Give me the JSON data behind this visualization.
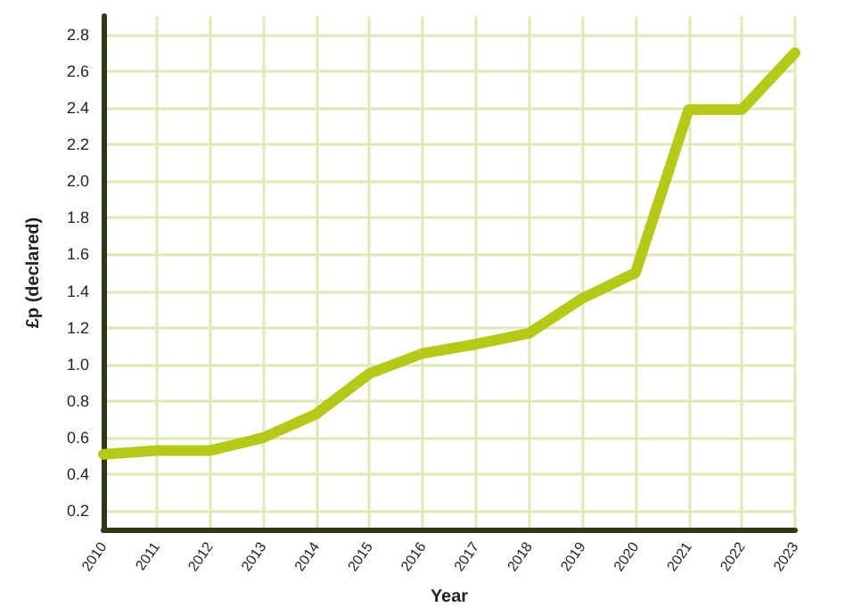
{
  "chart_data": {
    "type": "line",
    "xlabel": "Year",
    "ylabel": "£p (declared)",
    "categories": [
      "2010",
      "2011",
      "2012",
      "2013",
      "2014",
      "2015",
      "2016",
      "2017",
      "2018",
      "2019",
      "2020",
      "2021",
      "2022",
      "2023"
    ],
    "series": [
      {
        "color": "#b5c918",
        "values": [
          0.51,
          0.53,
          0.53,
          0.6,
          0.73,
          0.95,
          1.06,
          1.11,
          1.17,
          1.36,
          1.5,
          2.39,
          2.39,
          2.7
        ]
      }
    ],
    "ylim": [
      0.1,
      2.9
    ],
    "yticks": [
      0.2,
      0.4,
      0.6,
      0.8,
      {
        "value": 1,
        "label": "1.0"
      },
      1.2,
      1.4,
      1.6,
      1.8,
      {
        "value": 2,
        "label": "2.0"
      },
      2.2,
      2.4,
      2.6,
      2.8
    ],
    "grid": true,
    "line_style": "solid"
  }
}
